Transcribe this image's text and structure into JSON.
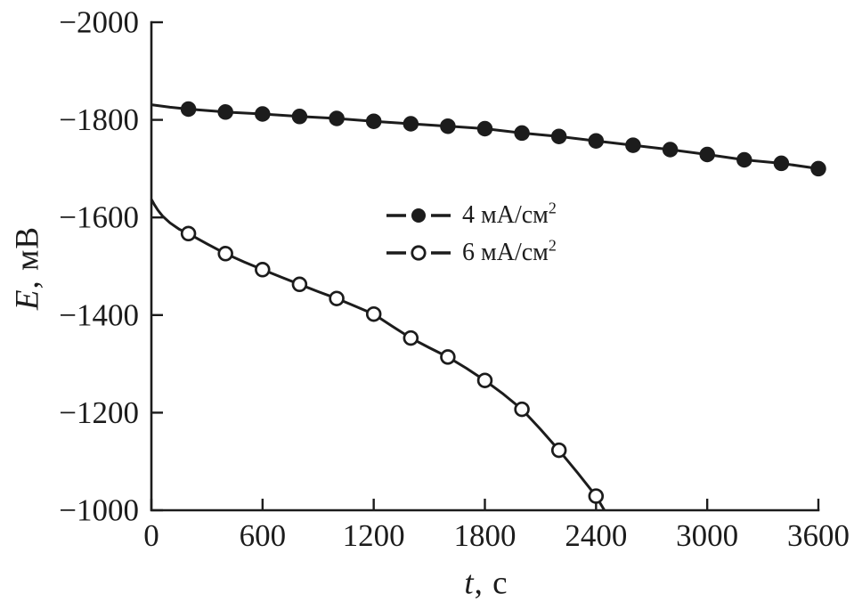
{
  "figure": {
    "background": "#ffffff",
    "ink_color": "#1c1c1c"
  },
  "axes": {
    "y_title_variable": "E",
    "y_title_rest": ", мВ",
    "x_title_variable": "t",
    "x_title_rest": ", с"
  },
  "legend": {
    "position": "inside-center-left",
    "items": [
      {
        "label": "4 мА/см",
        "sup": "2",
        "marker": "filled-circle"
      },
      {
        "label": "6 мА/см",
        "sup": "2",
        "marker": "open-circle"
      }
    ]
  },
  "chart_data": {
    "type": "line",
    "title": "",
    "xlabel": "t, с",
    "ylabel": "E, мВ",
    "xlim": [
      0,
      3600
    ],
    "ylim": [
      -2000,
      -1000
    ],
    "y_axis_inverted": true,
    "grid": false,
    "x_ticks": [
      0,
      600,
      1200,
      1800,
      2400,
      3000,
      3600
    ],
    "x_tick_labels": [
      "0",
      "600",
      "1200",
      "1800",
      "2400",
      "3000",
      "3600"
    ],
    "y_ticks": [
      -2000,
      -1800,
      -1600,
      -1400,
      -1200,
      -1000
    ],
    "y_tick_labels": [
      "−2000",
      "−1800",
      "−1600",
      "−1400",
      "−1200",
      "−1000"
    ],
    "series": [
      {
        "name": "4 мА/см2",
        "marker": "filled-circle",
        "line_points": [
          [
            0,
            -1831
          ],
          [
            100,
            -1826
          ],
          [
            200,
            -1822
          ],
          [
            400,
            -1816
          ],
          [
            600,
            -1812
          ],
          [
            800,
            -1807
          ],
          [
            1000,
            -1803
          ],
          [
            1200,
            -1797
          ],
          [
            1400,
            -1792
          ],
          [
            1600,
            -1787
          ],
          [
            1800,
            -1782
          ],
          [
            2000,
            -1773
          ],
          [
            2200,
            -1766
          ],
          [
            2400,
            -1757
          ],
          [
            2600,
            -1748
          ],
          [
            2800,
            -1739
          ],
          [
            3000,
            -1729
          ],
          [
            3200,
            -1718
          ],
          [
            3400,
            -1711
          ],
          [
            3600,
            -1700
          ]
        ],
        "marker_points": [
          [
            200,
            -1822
          ],
          [
            400,
            -1816
          ],
          [
            600,
            -1812
          ],
          [
            800,
            -1807
          ],
          [
            1000,
            -1803
          ],
          [
            1200,
            -1797
          ],
          [
            1400,
            -1792
          ],
          [
            1600,
            -1787
          ],
          [
            1800,
            -1782
          ],
          [
            2000,
            -1773
          ],
          [
            2200,
            -1766
          ],
          [
            2400,
            -1757
          ],
          [
            2600,
            -1748
          ],
          [
            2800,
            -1739
          ],
          [
            3000,
            -1729
          ],
          [
            3200,
            -1718
          ],
          [
            3400,
            -1711
          ],
          [
            3600,
            -1700
          ]
        ]
      },
      {
        "name": "6 мА/см2",
        "marker": "open-circle",
        "line_points": [
          [
            0,
            -1637
          ],
          [
            15,
            -1627
          ],
          [
            35,
            -1615
          ],
          [
            60,
            -1603
          ],
          [
            100,
            -1589
          ],
          [
            150,
            -1576
          ],
          [
            200,
            -1567
          ],
          [
            300,
            -1546
          ],
          [
            400,
            -1526
          ],
          [
            500,
            -1509
          ],
          [
            600,
            -1493
          ],
          [
            700,
            -1478
          ],
          [
            800,
            -1463
          ],
          [
            900,
            -1448
          ],
          [
            1000,
            -1434
          ],
          [
            1100,
            -1418
          ],
          [
            1200,
            -1402
          ],
          [
            1300,
            -1377
          ],
          [
            1400,
            -1353
          ],
          [
            1500,
            -1333
          ],
          [
            1600,
            -1314
          ],
          [
            1700,
            -1291
          ],
          [
            1800,
            -1266
          ],
          [
            1900,
            -1238
          ],
          [
            2000,
            -1207
          ],
          [
            2100,
            -1166
          ],
          [
            2200,
            -1123
          ],
          [
            2300,
            -1077
          ],
          [
            2400,
            -1029
          ],
          [
            2445,
            -1000
          ]
        ],
        "marker_points": [
          [
            200,
            -1567
          ],
          [
            400,
            -1526
          ],
          [
            600,
            -1493
          ],
          [
            800,
            -1463
          ],
          [
            1000,
            -1434
          ],
          [
            1200,
            -1402
          ],
          [
            1400,
            -1353
          ],
          [
            1600,
            -1314
          ],
          [
            1800,
            -1266
          ],
          [
            2000,
            -1207
          ],
          [
            2200,
            -1123
          ],
          [
            2400,
            -1029
          ]
        ]
      }
    ]
  }
}
